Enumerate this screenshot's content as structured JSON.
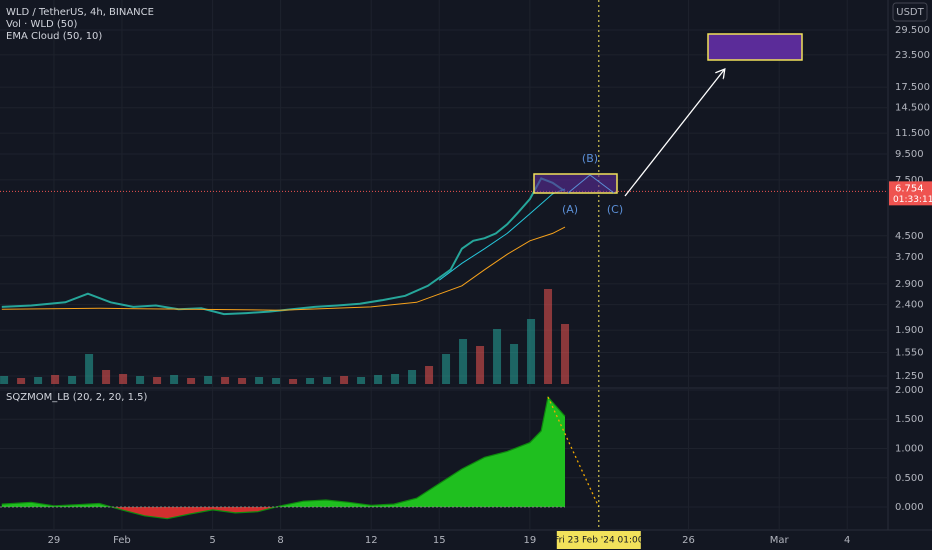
{
  "chart_data": [
    {
      "type": "line",
      "title": "WLD / TetherUS, 4h, BINANCE",
      "subtitle": "EMA Cloud (50, 10)",
      "axis_unit": "USDT",
      "log": true,
      "xlim": [
        -4.38,
        34.8
      ],
      "ylim": [
        1.12,
        38.8
      ],
      "xticks": [
        {
          "value": -2,
          "label": "29"
        },
        {
          "value": 1,
          "label": "Feb"
        },
        5,
        8,
        12,
        15,
        19,
        26,
        {
          "value": 30,
          "label": "Mar"
        },
        {
          "value": 33,
          "label": "4"
        }
      ],
      "yticks": [
        {
          "value": 29.5,
          "label": "29.500"
        },
        {
          "value": 23.5,
          "label": "23.500"
        },
        {
          "value": 17.5,
          "label": "17.500"
        },
        {
          "value": 14.5,
          "label": "14.500"
        },
        {
          "value": 11.5,
          "label": "11.500"
        },
        {
          "value": 9.5,
          "label": "9.500"
        },
        {
          "value": 7.5,
          "label": "7.500"
        },
        {
          "value": 4.5,
          "label": "4.500"
        },
        {
          "value": 3.7,
          "label": "3.700"
        },
        {
          "value": 2.9,
          "label": "2.900"
        },
        {
          "value": 2.4,
          "label": "2.400"
        },
        {
          "value": 1.9,
          "label": "1.900"
        },
        {
          "value": 1.55,
          "label": "1.550"
        },
        {
          "value": 1.25,
          "label": "1.250"
        }
      ],
      "last_value": {
        "value": 6.754,
        "label": "6.754"
      },
      "countdown": "01:33:11",
      "crosshair": {
        "value": 22.04,
        "label": "Fri 23 Feb '24   01:00"
      },
      "annotations": [
        "(A)",
        "(B)",
        "(C)"
      ],
      "series": [
        {
          "color": "#26a69a",
          "x": [
            -4.3,
            -3,
            -1.5,
            -0.5,
            0.5,
            1.5,
            2.5,
            3.5,
            4.5,
            5.5,
            6.5,
            7.5,
            8.5,
            9.5,
            10.5,
            11.5,
            12.5,
            13.5,
            14.5,
            15.5,
            16,
            16.5,
            17,
            17.5,
            18,
            18.5,
            19,
            19.5,
            20,
            20.55
          ],
          "values": [
            2.35,
            2.38,
            2.45,
            2.65,
            2.45,
            2.35,
            2.38,
            2.3,
            2.32,
            2.2,
            2.22,
            2.25,
            2.3,
            2.35,
            2.38,
            2.42,
            2.5,
            2.6,
            2.85,
            3.3,
            4.0,
            4.3,
            4.4,
            4.6,
            5.0,
            5.6,
            6.3,
            7.6,
            7.3,
            6.754
          ]
        },
        {
          "color": "#f7a21b",
          "x": [
            -4.3,
            0,
            4,
            8,
            12,
            14,
            16,
            17,
            18,
            19,
            20,
            20.55
          ],
          "values": [
            2.3,
            2.32,
            2.3,
            2.28,
            2.35,
            2.45,
            2.85,
            3.3,
            3.8,
            4.3,
            4.6,
            4.87
          ]
        },
        {
          "color": "#26c6da",
          "x": [
            15,
            16,
            17,
            18,
            19,
            20,
            20.55
          ],
          "values": [
            3.0,
            3.5,
            4.0,
            4.6,
            5.5,
            6.6,
            6.9
          ]
        }
      ]
    },
    {
      "type": "bar",
      "title": "Vol · WLD (50)",
      "ylim": [
        0,
        100
      ],
      "x": [
        -4.2,
        -3.45,
        -2.7,
        -1.95,
        -1.2,
        -0.45,
        0.3,
        1.05,
        1.8,
        2.55,
        3.3,
        4.05,
        4.8,
        5.55,
        6.3,
        7.05,
        7.8,
        8.55,
        9.3,
        10.05,
        10.8,
        11.55,
        12.3,
        13.05,
        13.8,
        14.55,
        15.3,
        16.05,
        16.8,
        17.55,
        18.3,
        19.05,
        19.8,
        20.55
      ],
      "values": [
        8,
        6,
        7,
        9,
        8,
        30,
        14,
        10,
        8,
        7,
        9,
        6,
        8,
        7,
        6,
        7,
        6,
        5,
        6,
        7,
        8,
        7,
        9,
        10,
        14,
        18,
        30,
        45,
        38,
        55,
        40,
        65,
        95,
        60
      ],
      "colors": [
        "#26a69a",
        "#ef5350",
        "#26a69a",
        "#ef5350",
        "#26a69a",
        "#26a69a",
        "#ef5350",
        "#ef5350",
        "#26a69a",
        "#ef5350",
        "#26a69a",
        "#ef5350",
        "#26a69a",
        "#ef5350",
        "#ef5350",
        "#26a69a",
        "#26a69a",
        "#ef5350",
        "#26a69a",
        "#26a69a",
        "#ef5350",
        "#26a69a",
        "#26a69a",
        "#26a69a",
        "#26a69a",
        "#ef5350",
        "#26a69a",
        "#26a69a",
        "#ef5350",
        "#26a69a",
        "#26a69a",
        "#26a69a",
        "#ef5350",
        "#ef5350"
      ]
    },
    {
      "type": "area",
      "title": "SQZMOM_LB (20, 2, 20, 1.5)",
      "color": "#1fbf1f",
      "negative_color": "#d32f2f",
      "ylim": [
        -0.393,
        2.034
      ],
      "yticks": [
        {
          "value": 2,
          "label": "2.000"
        },
        {
          "value": 1.5,
          "label": "1.500"
        },
        {
          "value": 1,
          "label": "1.000"
        },
        {
          "value": 0.5,
          "label": "0.500"
        },
        {
          "value": 0,
          "label": "0.000"
        }
      ],
      "x": [
        -4.3,
        -3,
        -2,
        -1,
        0,
        1,
        2,
        3,
        4,
        5,
        6,
        7,
        8,
        9,
        10,
        11,
        12,
        13,
        14,
        15,
        16,
        17,
        18,
        19,
        19.5,
        19.8,
        20.55
      ],
      "values": [
        0.05,
        0.08,
        0.02,
        0.04,
        0.06,
        -0.05,
        -0.15,
        -0.2,
        -0.12,
        -0.05,
        -0.1,
        -0.08,
        0.02,
        0.1,
        0.12,
        0.08,
        0.03,
        0.05,
        0.15,
        0.4,
        0.65,
        0.85,
        0.95,
        1.1,
        1.3,
        1.88,
        1.55
      ],
      "projection": {
        "x": [
          19.8,
          22.04
        ],
        "values": [
          1.88,
          0
        ]
      }
    }
  ]
}
